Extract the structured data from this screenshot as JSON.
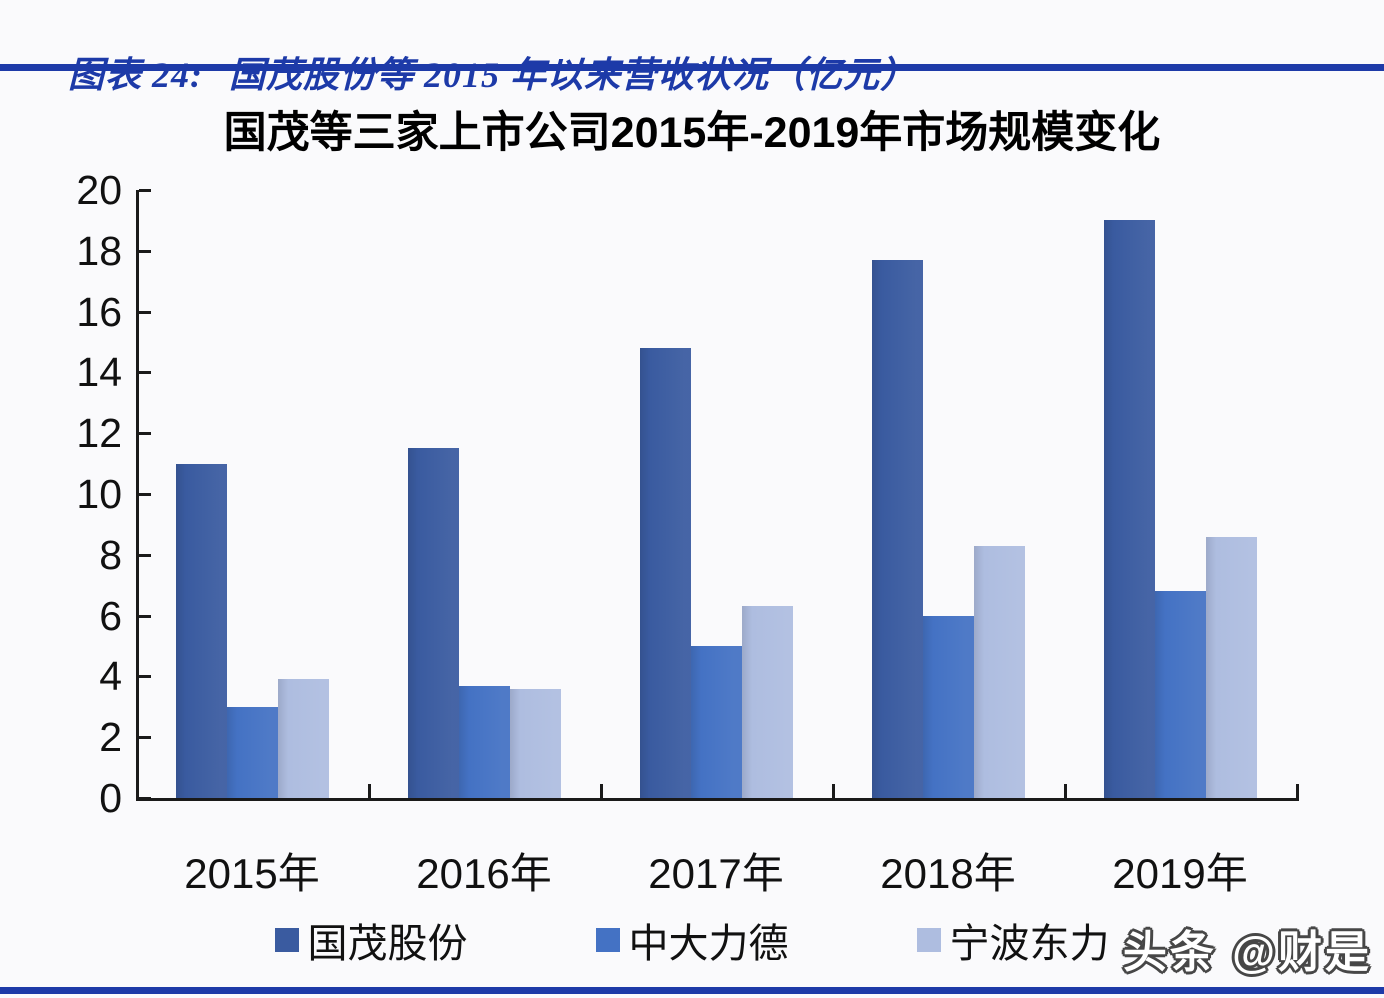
{
  "page": {
    "background": "#fafafc",
    "accent_blue": "#1d3aa8",
    "axis_color": "#1a1a1a"
  },
  "caption": {
    "label": "图表 24:",
    "text": "国茂股份等 2015 年以来营收状况（亿元）"
  },
  "watermark": {
    "text": "头条 @财是"
  },
  "chart_data": {
    "type": "bar",
    "title": "国茂等三家上市公司2015年-2019年市场规模变化",
    "categories": [
      "2015年",
      "2016年",
      "2017年",
      "2018年",
      "2019年"
    ],
    "series": [
      {
        "name": "国茂股份",
        "color": "#3a5ba0",
        "values": [
          11.0,
          11.5,
          14.8,
          17.7,
          19.0
        ]
      },
      {
        "name": "中大力德",
        "color": "#4472c4",
        "values": [
          3.0,
          3.7,
          5.0,
          6.0,
          6.8
        ]
      },
      {
        "name": "宁波东力",
        "color": "#aebde0",
        "values": [
          3.9,
          3.6,
          6.3,
          8.3,
          8.6
        ]
      }
    ],
    "xlabel": "",
    "ylabel": "",
    "ylim": [
      0,
      20
    ],
    "ytick_step": 2,
    "yticks": [
      0,
      2,
      4,
      6,
      8,
      10,
      12,
      14,
      16,
      18,
      20
    ],
    "grid": false,
    "legend_position": "bottom",
    "unit": "亿元"
  }
}
